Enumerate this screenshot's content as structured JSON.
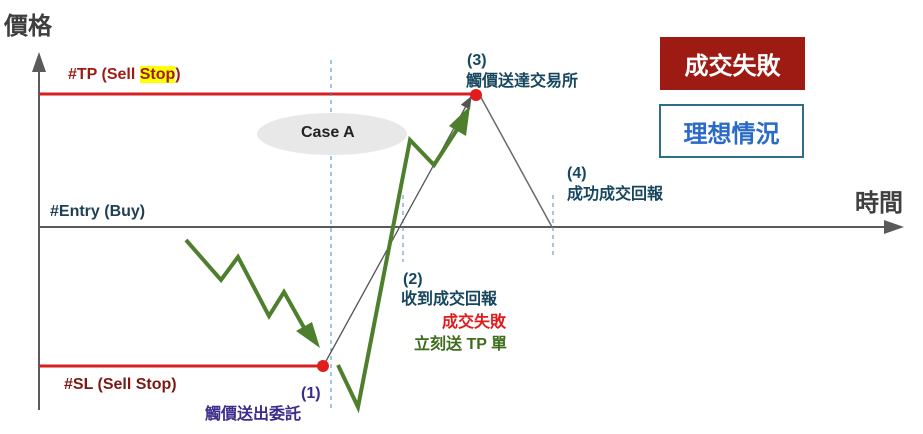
{
  "axes": {
    "y_label": "價格",
    "x_label": "時間"
  },
  "levels": {
    "tp_prefix": "#TP (Sell ",
    "tp_highlight": "Stop",
    "tp_suffix": ")",
    "entry": "#Entry (Buy)",
    "sl": "#SL (Sell Stop)"
  },
  "case_label": "Case A",
  "badges": {
    "failure": "成交失敗",
    "ideal": "理想情況"
  },
  "steps": {
    "s1_num": "(1)",
    "s1_text": "觸價送出委託",
    "s2_num": "(2)",
    "s2_text": "收到成交回報",
    "s2_fail": "成交失敗",
    "s2_action": "立刻送 TP 單",
    "s3_num": "(3)",
    "s3_text": "觸價送達交易所",
    "s4_num": "(4)",
    "s4_text": "成功成交回報"
  },
  "colors": {
    "level_red": "#d62020",
    "price_green": "#4e7f2c",
    "step_text": "#17475f",
    "sl_text": "#7b1a14",
    "failure_bg": "#9e1b14",
    "ideal_border": "#2f6f86",
    "ideal_text": "#2a6ac8",
    "highlight": "#ffff00",
    "s1_text": "#3d2c8a",
    "s2_fail": "#e01c1c",
    "s2_action": "#3f6d1e"
  }
}
